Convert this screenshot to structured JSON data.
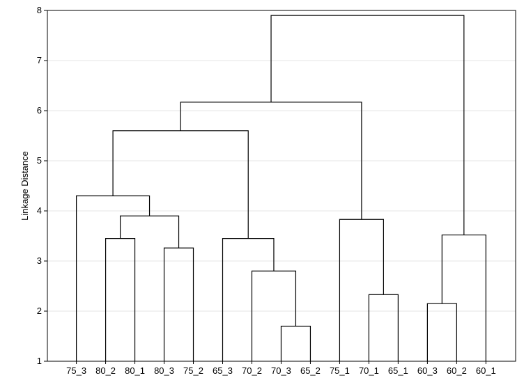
{
  "chart_data": {
    "type": "dendrogram",
    "ylabel": "Linkage Distance",
    "ylim": [
      1,
      8
    ],
    "yticks": [
      "1",
      "2",
      "3",
      "4",
      "5",
      "6",
      "7",
      "8"
    ],
    "grid": true,
    "leaves": [
      "75_3",
      "80_2",
      "80_1",
      "80_3",
      "75_2",
      "65_3",
      "70_2",
      "70_3",
      "65_2",
      "75_1",
      "70_1",
      "65_1",
      "60_3",
      "60_2",
      "60_1"
    ],
    "merges": [
      {
        "left": "70_3",
        "right": "65_2",
        "height": 1.7
      },
      {
        "left": "60_3",
        "right": "60_2",
        "height": 2.15
      },
      {
        "left": "70_1",
        "right": "65_1",
        "height": 2.33
      },
      {
        "left": "70_2",
        "right": "(70_3,65_2)",
        "height": 2.8
      },
      {
        "left": "80_3",
        "right": "75_2",
        "height": 3.26
      },
      {
        "left": "80_2",
        "right": "80_1",
        "height": 3.45
      },
      {
        "left": "65_3",
        "right": "(70_2,70_3,65_2)",
        "height": 3.45
      },
      {
        "left": "(60_3,60_2)",
        "right": "60_1",
        "height": 3.52
      },
      {
        "left": "75_1",
        "right": "(70_1,65_1)",
        "height": 3.83
      },
      {
        "left": "(80_2,80_1)",
        "right": "(80_3,75_2)",
        "height": 3.9
      },
      {
        "left": "75_3",
        "right": "(80_2,80_1,80_3,75_2)",
        "height": 4.3
      },
      {
        "left": "(75_3..75_2)",
        "right": "(65_3..65_2)",
        "height": 5.6
      },
      {
        "left": "(75_3..65_2)",
        "right": "(75_1,70_1,65_1)",
        "height": 6.17
      },
      {
        "left": "(75_3..65_1)",
        "right": "(60_3,60_2,60_1)",
        "height": 7.9
      }
    ]
  }
}
